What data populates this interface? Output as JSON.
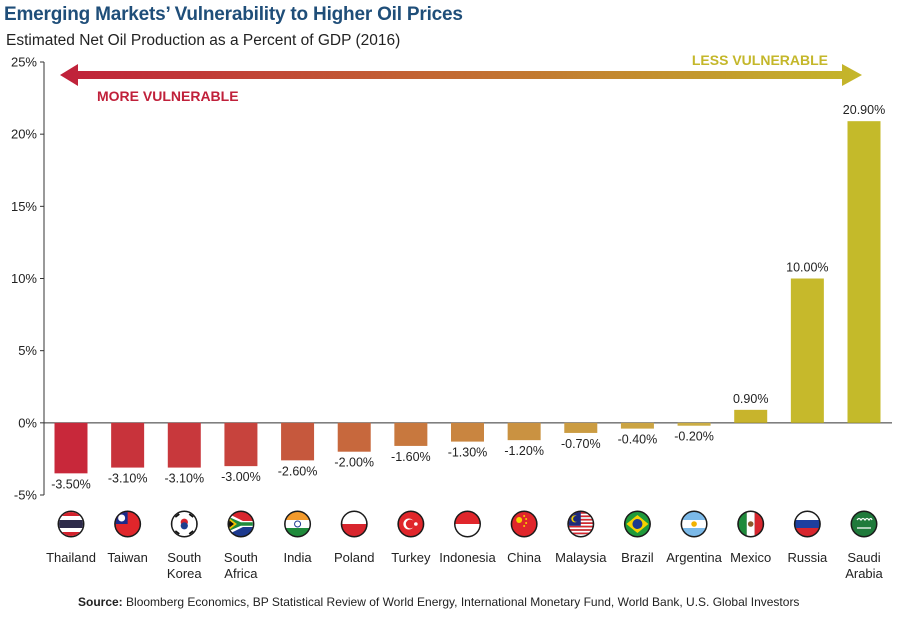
{
  "title": "Emerging Markets’ Vulnerability to Higher Oil Prices",
  "subtitle": "Estimated Net Oil Production as a Percent of GDP (2016)",
  "annotations": {
    "left_label": "MORE VULNERABLE",
    "right_label": "LESS VULNERABLE",
    "left_color": "#c0203a",
    "right_color": "#c4b72a"
  },
  "source": {
    "prefix": "Source:",
    "text": " Bloomberg Economics, BP Statistical Review of World Energy, International Monetary Fund, World Bank, U.S. Global Investors"
  },
  "chart_data": {
    "type": "bar",
    "title": "Emerging Markets’ Vulnerability to Higher Oil Prices",
    "subtitle": "Estimated Net Oil Production as a Percent of GDP (2016)",
    "categories": [
      "Thailand",
      "Taiwan",
      "South Korea",
      "South Africa",
      "India",
      "Poland",
      "Turkey",
      "Indonesia",
      "China",
      "Malaysia",
      "Brazil",
      "Argentina",
      "Mexico",
      "Russia",
      "Saudi Arabia"
    ],
    "category_lines": [
      [
        "Thailand"
      ],
      [
        "Taiwan"
      ],
      [
        "South",
        "Korea"
      ],
      [
        "South",
        "Africa"
      ],
      [
        "India"
      ],
      [
        "Poland"
      ],
      [
        "Turkey"
      ],
      [
        "Indonesia"
      ],
      [
        "China"
      ],
      [
        "Malaysia"
      ],
      [
        "Brazil"
      ],
      [
        "Argentina"
      ],
      [
        "Mexico"
      ],
      [
        "Russia"
      ],
      [
        "Saudi",
        "Arabia"
      ]
    ],
    "values": [
      -3.5,
      -3.1,
      -3.1,
      -3.0,
      -2.6,
      -2.0,
      -1.6,
      -1.3,
      -1.2,
      -0.7,
      -0.4,
      -0.2,
      0.9,
      10.0,
      20.9
    ],
    "data_labels": [
      "-3.50%",
      "-3.10%",
      "-3.10%",
      "-3.00%",
      "-2.60%",
      "-2.00%",
      "-1.60%",
      "-1.30%",
      "-1.20%",
      "-0.70%",
      "-0.40%",
      "-0.20%",
      "0.90%",
      "10.00%",
      "20.90%"
    ],
    "bar_colors": [
      "#c8283a",
      "#c8333b",
      "#c8383c",
      "#c7433d",
      "#c6583d",
      "#c7683d",
      "#c8783e",
      "#c98540",
      "#ca9241",
      "#cb9c42",
      "#cba443",
      "#cbad44",
      "#c8b42c",
      "#c6b92b",
      "#c4ba2a"
    ],
    "flags": [
      "thailand-flag-icon",
      "taiwan-flag-icon",
      "south-korea-flag-icon",
      "south-africa-flag-icon",
      "india-flag-icon",
      "poland-flag-icon",
      "turkey-flag-icon",
      "indonesia-flag-icon",
      "china-flag-icon",
      "malaysia-flag-icon",
      "brazil-flag-icon",
      "argentina-flag-icon",
      "mexico-flag-icon",
      "russia-flag-icon",
      "saudi-arabia-flag-icon"
    ],
    "ylim": [
      -5,
      25
    ],
    "yticks": [
      -5,
      0,
      5,
      10,
      15,
      20,
      25
    ],
    "ytick_labels": [
      "-5%",
      "0%",
      "5%",
      "10%",
      "15%",
      "20%",
      "25%"
    ],
    "xlabel": "",
    "ylabel": "",
    "grid": false,
    "legend": "none"
  }
}
